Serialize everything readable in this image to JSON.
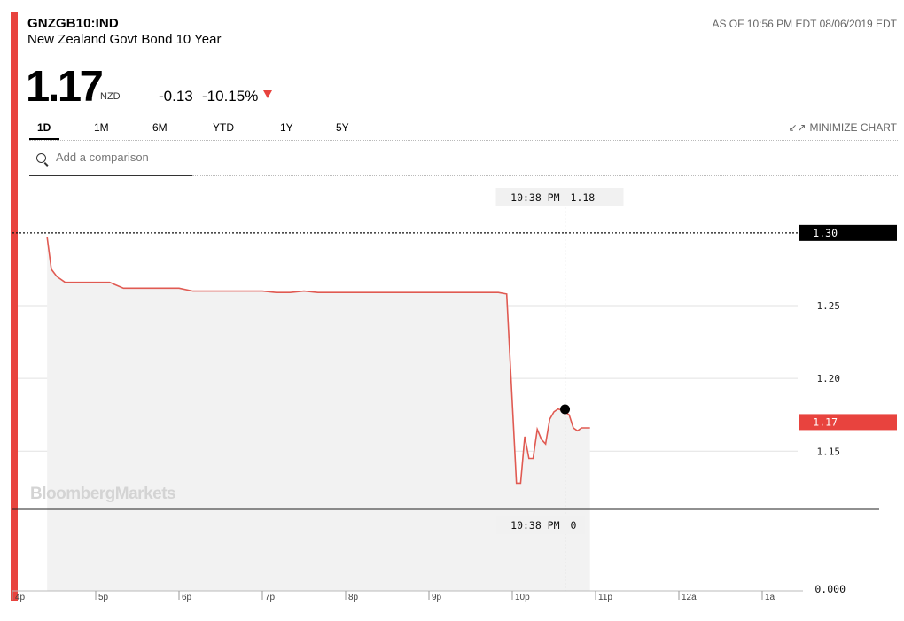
{
  "header": {
    "ticker": "GNZGB10:IND",
    "name": "New Zealand Govt Bond 10 Year",
    "as_of": "AS OF 10:56 PM EDT 08/06/2019 EDT",
    "price": "1.17",
    "currency": "NZD",
    "change": "-0.13",
    "change_pct": "-10.15%",
    "direction": "down"
  },
  "tabs": [
    {
      "label": "1D",
      "active": true
    },
    {
      "label": "1M",
      "active": false
    },
    {
      "label": "6M",
      "active": false
    },
    {
      "label": "YTD",
      "active": false
    },
    {
      "label": "1Y",
      "active": false
    },
    {
      "label": "5Y",
      "active": false
    }
  ],
  "minimize_label": "MINIMIZE CHART",
  "search": {
    "placeholder": "Add a comparison"
  },
  "watermark": "BloombergMarkets",
  "colors": {
    "accent": "#e8433e",
    "line": "#e05a52",
    "area": "#f2f2f2",
    "previous_close_tag": "#000000",
    "last_price_tag": "#e8433e"
  },
  "chart_data": {
    "type": "line",
    "x_ticks": [
      "4p",
      "5p",
      "6p",
      "7p",
      "8p",
      "9p",
      "10p",
      "11p",
      "12a",
      "1a"
    ],
    "y_ticks": [
      "1.15",
      "1.20",
      "1.25"
    ],
    "y_range": [
      1.11,
      1.32
    ],
    "previous_close": "1.30",
    "last_price": "1.17",
    "crosshair": {
      "time": "10:38 PM",
      "price": "1.18",
      "volume": "0",
      "volume_axis_label": "0.000"
    },
    "series": [
      {
        "x": [
          "16:25",
          "16:28",
          "16:32",
          "16:38",
          "16:50",
          "17:00",
          "17:10",
          "17:20",
          "17:30",
          "17:40",
          "17:50",
          "18:00",
          "18:10",
          "18:20",
          "18:30",
          "18:40",
          "18:50",
          "19:00",
          "19:10",
          "19:20",
          "19:30",
          "19:40",
          "19:50",
          "20:00",
          "20:10",
          "20:20",
          "20:30",
          "20:40",
          "20:50",
          "21:00",
          "21:10",
          "21:20",
          "21:30",
          "21:40",
          "21:50",
          "21:56",
          "22:03",
          "22:06",
          "22:09",
          "22:12",
          "22:15",
          "22:18",
          "22:21",
          "22:24",
          "22:27",
          "22:30",
          "22:33",
          "22:36",
          "22:38",
          "22:41",
          "22:44",
          "22:47",
          "22:50",
          "22:56"
        ],
        "y": [
          1.297,
          1.275,
          1.27,
          1.266,
          1.266,
          1.266,
          1.266,
          1.262,
          1.262,
          1.262,
          1.262,
          1.262,
          1.26,
          1.26,
          1.26,
          1.26,
          1.26,
          1.26,
          1.259,
          1.259,
          1.26,
          1.259,
          1.259,
          1.259,
          1.259,
          1.259,
          1.259,
          1.259,
          1.259,
          1.259,
          1.259,
          1.259,
          1.259,
          1.259,
          1.259,
          1.258,
          1.128,
          1.128,
          1.16,
          1.145,
          1.145,
          1.165,
          1.158,
          1.155,
          1.172,
          1.177,
          1.179,
          1.178,
          1.177,
          1.175,
          1.166,
          1.164,
          1.166,
          1.166
        ]
      }
    ]
  }
}
